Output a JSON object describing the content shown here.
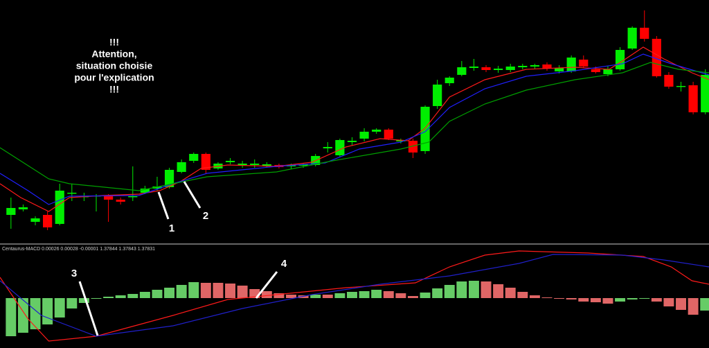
{
  "chart_data": [
    {
      "type": "candlestick",
      "note": [
        "!!!",
        "Attention,",
        "situation choisie",
        "pour l'explication",
        "!!!"
      ],
      "annotations": [
        "1",
        "2"
      ],
      "xlim": [
        -0.9,
        57.3
      ],
      "ylim": [
        0,
        350
      ],
      "up_color": "#00ee00",
      "down_color": "#ff0000",
      "open": [
        40,
        48,
        30,
        40,
        27,
        71,
        66,
        67,
        67,
        62,
        66,
        72,
        78,
        80,
        102,
        118,
        128,
        107,
        116,
        112,
        112,
        111,
        112,
        110,
        111,
        112,
        136,
        126,
        145,
        150,
        160,
        163,
        146,
        147,
        132,
        197,
        230,
        242,
        252,
        253,
        249,
        249,
        253,
        254,
        257,
        247,
        247,
        264,
        250,
        243,
        250,
        280,
        310,
        294,
        242,
        225,
        227,
        188
      ],
      "high": [
        65,
        55,
        38,
        45,
        85,
        85,
        72,
        70,
        70,
        65,
        110,
        82,
        95,
        108,
        120,
        130,
        130,
        116,
        122,
        118,
        120,
        116,
        114,
        114,
        115,
        128,
        145,
        150,
        152,
        165,
        165,
        165,
        150,
        150,
        198,
        235,
        240,
        262,
        265,
        256,
        255,
        258,
        258,
        258,
        260,
        256,
        270,
        270,
        254,
        255,
        282,
        312,
        335,
        298,
        246,
        232,
        232,
        250
      ],
      "low": [
        20,
        45,
        25,
        18,
        25,
        60,
        60,
        45,
        30,
        55,
        60,
        70,
        75,
        78,
        100,
        115,
        100,
        105,
        113,
        108,
        108,
        108,
        107,
        106,
        108,
        110,
        130,
        124,
        140,
        146,
        157,
        148,
        143,
        122,
        128,
        193,
        226,
        240,
        248,
        246,
        245,
        246,
        250,
        251,
        248,
        244,
        245,
        252,
        244,
        240,
        248,
        278,
        290,
        238,
        222,
        218,
        185,
        185
      ],
      "close": [
        50,
        51,
        35,
        22,
        75,
        72,
        67,
        68,
        62,
        59,
        67,
        78,
        81,
        105,
        116,
        128,
        105,
        114,
        118,
        114,
        114,
        113,
        109,
        112,
        113,
        125,
        138,
        148,
        147,
        160,
        163,
        150,
        148,
        130,
        196,
        228,
        238,
        253,
        254,
        249,
        251,
        254,
        255,
        256,
        251,
        252,
        267,
        254,
        246,
        250,
        278,
        310,
        294,
        240,
        225,
        226,
        188,
        242
      ],
      "series": [
        {
          "name": "ma-fast",
          "color": "#ff1a1a",
          "x": [
            -0.9,
            0.8,
            3.1,
            4.8,
            7.6,
            10.5,
            12.2,
            13.9,
            15.6,
            17.8,
            21.8,
            24.7,
            27.5,
            30.3,
            32.6,
            34,
            36,
            38.9,
            42.3,
            46.3,
            49.1,
            50.2,
            51.9,
            53.6,
            55.9,
            57.3
          ],
          "values": [
            85,
            65,
            45,
            65,
            68,
            70,
            75,
            88,
            107,
            112,
            110,
            116,
            138,
            150,
            147,
            165,
            210,
            235,
            250,
            253,
            250,
            262,
            282,
            265,
            245,
            235
          ]
        },
        {
          "name": "ma-mid",
          "color": "#2020ff",
          "x": [
            -0.9,
            1.4,
            3.1,
            4.8,
            10.5,
            13.3,
            16.1,
            21.8,
            25.8,
            28.6,
            32,
            34,
            36,
            38.9,
            42.3,
            46.3,
            50.2,
            51.9,
            54.2,
            57.3
          ],
          "values": [
            100,
            75,
            55,
            67,
            68,
            85,
            100,
            110,
            115,
            135,
            145,
            160,
            195,
            222,
            240,
            248,
            258,
            272,
            258,
            242
          ]
        },
        {
          "name": "ma-slow",
          "color": "#00a000",
          "x": [
            -0.9,
            3.1,
            4.8,
            10.5,
            13.3,
            16.1,
            21.8,
            26.4,
            32,
            34.3,
            36,
            38.9,
            42.3,
            46.3,
            50.2,
            52.5,
            54.8,
            57.3
          ],
          "values": [
            137,
            92,
            85,
            75,
            85,
            95,
            102,
            118,
            135,
            145,
            175,
            200,
            220,
            235,
            245,
            260,
            250,
            245
          ]
        }
      ]
    },
    {
      "type": "macd",
      "label": "Centaurus-MACD 0.00026 0.00028 -0.00001 1.37844 1.37843 1.37831",
      "annotations": [
        "3",
        "4"
      ],
      "xlim": [
        -0.9,
        57.3
      ],
      "ylim": [
        -67,
        75
      ],
      "up_color": "#66cc66",
      "down_color": "#e06666",
      "values": [
        -55,
        -50,
        -45,
        -38,
        -28,
        -15,
        -7,
        -1,
        2,
        4,
        6,
        9,
        12,
        15,
        19,
        23,
        22,
        22,
        21,
        18,
        13,
        10,
        7,
        5,
        4,
        5,
        5,
        7,
        9,
        10,
        12,
        10,
        7,
        3,
        8,
        14,
        19,
        24,
        25,
        24,
        20,
        15,
        9,
        4,
        1,
        -1,
        -2,
        -5,
        -6,
        -8,
        -5,
        -2,
        -1,
        -5,
        -12,
        -17,
        -24,
        -18
      ],
      "series": [
        {
          "name": "macd",
          "color": "#ff1a1a",
          "x": [
            -0.9,
            1.4,
            3.1,
            7,
            13.3,
            17.8,
            21.8,
            27.5,
            33.2,
            36,
            38.9,
            41.7,
            47.4,
            51.9,
            54.2,
            55.9,
            57.3
          ],
          "values": [
            30,
            -30,
            -62,
            -55,
            -25,
            -2,
            5,
            15,
            22,
            45,
            62,
            68,
            65,
            60,
            45,
            25,
            20
          ]
        },
        {
          "name": "signal",
          "color": "#2020cc",
          "x": [
            -0.9,
            2.5,
            7,
            13.3,
            19,
            24.7,
            30.3,
            36,
            41.7,
            44.5,
            50.2,
            53.6,
            57.3
          ],
          "values": [
            25,
            -25,
            -55,
            -40,
            -15,
            5,
            20,
            32,
            50,
            63,
            62,
            55,
            45
          ]
        }
      ]
    }
  ]
}
